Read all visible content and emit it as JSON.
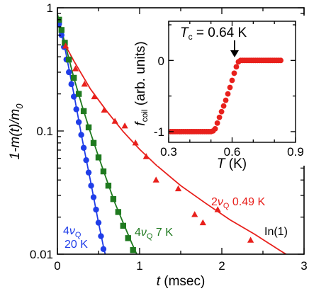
{
  "chart_data": [
    {
      "type": "scatter",
      "role": "main",
      "x_label": {
        "var": "t",
        "unit": "(msec)"
      },
      "y_label": {
        "expr": "1-m(t)/m",
        "sub": "0"
      },
      "x_ticks": [
        "0",
        "1",
        "2",
        "3"
      ],
      "y_ticks": [
        "0.01",
        "0.1",
        "1"
      ],
      "xlim": [
        0,
        3
      ],
      "ylim": [
        0.01,
        1
      ],
      "yscale": "log",
      "sample_label": "In(1)",
      "series": [
        {
          "name": "4νQ 20 K",
          "label": {
            "pre": "4",
            "nu": "ν",
            "sub": "Q",
            "line2": "20 K"
          },
          "color": "#1f3de8",
          "marker": "circle",
          "points": [
            [
              0.02,
              0.74
            ],
            [
              0.05,
              0.6
            ],
            [
              0.08,
              0.48
            ],
            [
              0.11,
              0.38
            ],
            [
              0.14,
              0.3
            ],
            [
              0.17,
              0.24
            ],
            [
              0.2,
              0.19
            ],
            [
              0.23,
              0.15
            ],
            [
              0.26,
              0.118
            ],
            [
              0.29,
              0.093
            ],
            [
              0.32,
              0.073
            ],
            [
              0.35,
              0.058
            ],
            [
              0.38,
              0.046
            ],
            [
              0.41,
              0.036
            ],
            [
              0.44,
              0.029
            ],
            [
              0.47,
              0.023
            ],
            [
              0.5,
              0.018
            ],
            [
              0.53,
              0.014
            ],
            [
              0.56,
              0.011
            ]
          ]
        },
        {
          "name": "4νQ 7 K",
          "label": {
            "pre": "4",
            "nu": "ν",
            "sub": "Q",
            "post": "7 K"
          },
          "color": "#1f7a1f",
          "marker": "square",
          "points": [
            [
              0.02,
              0.8
            ],
            [
              0.05,
              0.66
            ],
            [
              0.09,
              0.52
            ],
            [
              0.14,
              0.38
            ],
            [
              0.2,
              0.27
            ],
            [
              0.26,
              0.2
            ],
            [
              0.32,
              0.145
            ],
            [
              0.38,
              0.107
            ],
            [
              0.44,
              0.08
            ],
            [
              0.5,
              0.061
            ],
            [
              0.56,
              0.047
            ],
            [
              0.62,
              0.036
            ],
            [
              0.68,
              0.028
            ],
            [
              0.74,
              0.022
            ],
            [
              0.8,
              0.017
            ],
            [
              0.86,
              0.0135
            ],
            [
              0.92,
              0.0108
            ],
            [
              0.98,
              0.0087
            ]
          ]
        },
        {
          "name": "2νQ 0.49 K",
          "label": {
            "pre": "2",
            "nu": "ν",
            "sub": "Q",
            "post": "0.49 K"
          },
          "color": "#e8201c",
          "marker": "triangle",
          "points": [
            [
              0.1,
              0.49
            ],
            [
              0.22,
              0.32
            ],
            [
              0.33,
              0.24
            ],
            [
              0.45,
              0.19
            ],
            [
              0.57,
              0.148
            ],
            [
              0.7,
              0.12
            ],
            [
              0.82,
              0.11
            ],
            [
              0.95,
              0.08
            ],
            [
              1.08,
              0.062
            ],
            [
              1.2,
              0.04
            ],
            [
              1.47,
              0.034
            ],
            [
              1.67,
              0.021
            ],
            [
              1.77,
              0.018
            ],
            [
              1.95,
              0.023
            ],
            [
              2.35,
              0.013
            ],
            [
              2.7,
              0.0093
            ]
          ]
        }
      ],
      "fits": [
        {
          "color": "#1f3de8",
          "points": [
            [
              0,
              0.86
            ],
            [
              0.1,
              0.44
            ],
            [
              0.2,
              0.2
            ],
            [
              0.3,
              0.087
            ],
            [
              0.4,
              0.04
            ],
            [
              0.5,
              0.018
            ],
            [
              0.56,
              0.0115
            ],
            [
              0.59,
              0.0095
            ]
          ]
        },
        {
          "color": "#1f7a1f",
          "points": [
            [
              0,
              0.89
            ],
            [
              0.1,
              0.49
            ],
            [
              0.2,
              0.27
            ],
            [
              0.3,
              0.16
            ],
            [
              0.4,
              0.098
            ],
            [
              0.5,
              0.062
            ],
            [
              0.6,
              0.04
            ],
            [
              0.7,
              0.026
            ],
            [
              0.8,
              0.018
            ],
            [
              0.9,
              0.0125
            ],
            [
              0.98,
              0.0095
            ]
          ]
        },
        {
          "color": "#e8201c",
          "points": [
            [
              0.08,
              0.52
            ],
            [
              0.2,
              0.37
            ],
            [
              0.4,
              0.22
            ],
            [
              0.6,
              0.145
            ],
            [
              0.8,
              0.099
            ],
            [
              1.0,
              0.071
            ],
            [
              1.2,
              0.053
            ],
            [
              1.5,
              0.036
            ],
            [
              1.8,
              0.026
            ],
            [
              2.1,
              0.019
            ],
            [
              2.4,
              0.0145
            ],
            [
              2.7,
              0.0108
            ],
            [
              2.98,
              0.0083
            ]
          ]
        }
      ]
    },
    {
      "type": "scatter",
      "role": "inset",
      "x_label": {
        "var": "T",
        "unit": "(K)"
      },
      "y_label": {
        "var": "f",
        "sub": "coil",
        "unit": "(arb. units)"
      },
      "x_ticks": [
        "0.3",
        "0.6",
        "0.9"
      ],
      "y_ticks": [
        "-1",
        "0"
      ],
      "xlim": [
        0.3,
        0.9
      ],
      "ylim": [
        -1.15,
        0.55
      ],
      "annotation": {
        "pre": "T",
        "sub": "c",
        "post": " = 0.64 K",
        "x": 0.64,
        "y": 0
      },
      "series": [
        {
          "name": "fcoil",
          "color": "#e8201c",
          "marker": "circle",
          "points": [
            [
              0.31,
              -1
            ],
            [
              0.32,
              -1
            ],
            [
              0.33,
              -1
            ],
            [
              0.34,
              -1
            ],
            [
              0.35,
              -1
            ],
            [
              0.36,
              -1
            ],
            [
              0.37,
              -1
            ],
            [
              0.38,
              -1
            ],
            [
              0.39,
              -1
            ],
            [
              0.4,
              -1
            ],
            [
              0.41,
              -1
            ],
            [
              0.42,
              -1
            ],
            [
              0.43,
              -1
            ],
            [
              0.44,
              -1
            ],
            [
              0.45,
              -1
            ],
            [
              0.46,
              -1
            ],
            [
              0.47,
              -1
            ],
            [
              0.48,
              -1
            ],
            [
              0.49,
              -1
            ],
            [
              0.5,
              -1
            ],
            [
              0.51,
              -0.99
            ],
            [
              0.52,
              -0.96
            ],
            [
              0.53,
              -0.88
            ],
            [
              0.54,
              -0.8
            ],
            [
              0.55,
              -0.72
            ],
            [
              0.56,
              -0.64
            ],
            [
              0.57,
              -0.56
            ],
            [
              0.58,
              -0.47
            ],
            [
              0.59,
              -0.38
            ],
            [
              0.6,
              -0.28
            ],
            [
              0.61,
              -0.18
            ],
            [
              0.62,
              -0.09
            ],
            [
              0.63,
              -0.02
            ],
            [
              0.64,
              0
            ],
            [
              0.65,
              0
            ],
            [
              0.66,
              0
            ],
            [
              0.67,
              0
            ],
            [
              0.68,
              0
            ],
            [
              0.69,
              0
            ],
            [
              0.7,
              0
            ],
            [
              0.71,
              0
            ],
            [
              0.72,
              0
            ],
            [
              0.73,
              0
            ],
            [
              0.74,
              0
            ],
            [
              0.75,
              0
            ],
            [
              0.76,
              0
            ],
            [
              0.77,
              0
            ],
            [
              0.78,
              0
            ],
            [
              0.79,
              0
            ],
            [
              0.8,
              0
            ],
            [
              0.81,
              0
            ],
            [
              0.82,
              0
            ],
            [
              0.83,
              0
            ]
          ]
        }
      ]
    }
  ]
}
